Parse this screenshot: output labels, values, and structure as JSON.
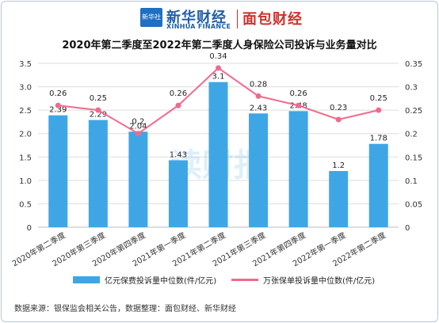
{
  "brand": {
    "logo_box": "新华社",
    "logo_cn": "新华财经",
    "logo_en": "XINHUA FINANCE",
    "right": "面包财经"
  },
  "watermark": "读财报",
  "source_note": "数据来源：银保监会相关公告，数据整理：面包财经、新华财经",
  "colors": {
    "bar": "#3fa6e6",
    "line": "#f06a8c"
  },
  "chart_data": {
    "type": "bar",
    "title": "2020年第二季度至2022年第二季度人身保险公司投诉与业务量对比",
    "categories": [
      "2020年第二季度",
      "2020年第三季度",
      "2020年第四季度",
      "2021年第一季度",
      "2021年第二季度",
      "2021年第三季度",
      "2021年第四季度",
      "2022年第一季度",
      "2022年第二季度"
    ],
    "series": [
      {
        "name": "亿元保费投诉量中位数(件/亿元)",
        "type": "bar",
        "axis": "left",
        "values": [
          2.39,
          2.29,
          2.04,
          1.43,
          3.1,
          2.43,
          2.48,
          1.2,
          1.78
        ],
        "labels": [
          "2.39",
          "2.29",
          "2.04",
          "1.43",
          "3.1",
          "2.43",
          "2.48",
          "1.2",
          "1.78"
        ]
      },
      {
        "name": "万张保单投诉量中位数(件/亿元)",
        "type": "line",
        "axis": "right",
        "values": [
          0.26,
          0.25,
          0.2,
          0.26,
          0.34,
          0.28,
          0.26,
          0.23,
          0.25
        ],
        "labels": [
          "0.26",
          "0.25",
          "0.2",
          "0.26",
          "0.34",
          "0.28",
          "0.26",
          "0.23",
          "0.25"
        ]
      }
    ],
    "y_left": {
      "min": 0,
      "max": 3.5,
      "ticks": [
        "0",
        "0.5",
        "1.0",
        "1.5",
        "2.0",
        "2.5",
        "3.0",
        "3.5"
      ]
    },
    "y_right": {
      "min": 0,
      "max": 0.35,
      "ticks": [
        "0",
        "0.05",
        "0.1",
        "0.15",
        "0.2",
        "0.25",
        "0.3",
        "0.35"
      ]
    },
    "grid": true,
    "legend_position": "bottom"
  }
}
